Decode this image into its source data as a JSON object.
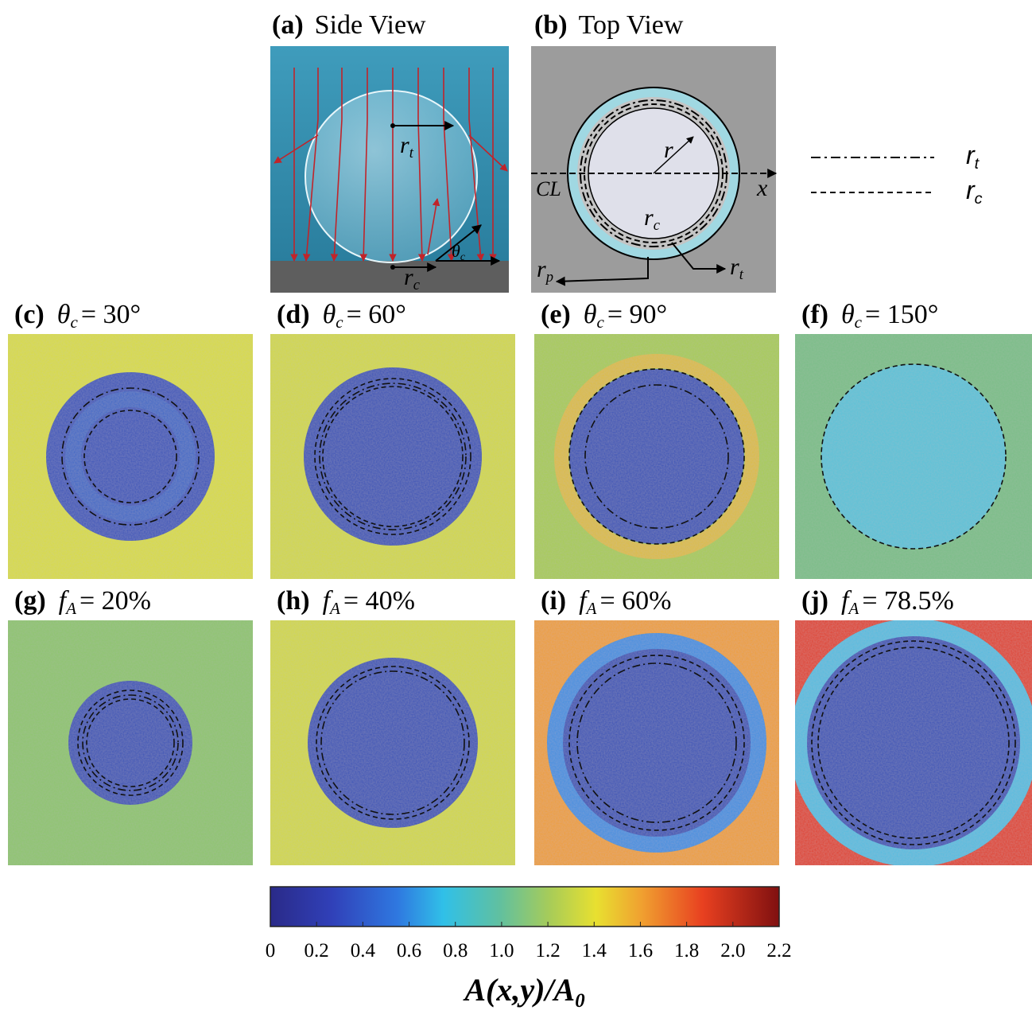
{
  "side_view": {
    "tag": "(a)",
    "title": "Side View",
    "r_t": [
      "r",
      "t"
    ],
    "r_c": [
      "r",
      "c"
    ],
    "theta_c": [
      "θ",
      "c"
    ]
  },
  "top_view": {
    "tag": "(b)",
    "title": "Top View",
    "r": "r",
    "cl": "CL",
    "x": "x",
    "r_c": [
      "r",
      "c"
    ],
    "r_p": [
      "r",
      "p"
    ],
    "r_t": [
      "r",
      "t"
    ]
  },
  "legend": [
    {
      "symbol": "r",
      "sub": "t",
      "style": "dash-dot"
    },
    {
      "symbol": "r",
      "sub": "c",
      "style": "dash"
    }
  ],
  "maps": [
    {
      "tag": "(c)",
      "symbol": "θ",
      "sub": "c",
      "text": "= 30°"
    },
    {
      "tag": "(d)",
      "symbol": "θ",
      "sub": "c",
      "text": "= 60°"
    },
    {
      "tag": "(e)",
      "symbol": "θ",
      "sub": "c",
      "text": "= 90°"
    },
    {
      "tag": "(f)",
      "symbol": "θ",
      "sub": "c",
      "text": "= 150°"
    },
    {
      "tag": "(g)",
      "symbol": "f",
      "sub": "A",
      "text": "= 20%"
    },
    {
      "tag": "(h)",
      "symbol": "f",
      "sub": "A",
      "text": "= 40%"
    },
    {
      "tag": "(i)",
      "symbol": "f",
      "sub": "A",
      "text": "= 60%"
    },
    {
      "tag": "(j)",
      "symbol": "f",
      "sub": "A",
      "text": "= 78.5%"
    }
  ],
  "colorbar": {
    "lim": [
      0,
      2.2
    ],
    "ticks": [
      0,
      0.2,
      0.4,
      0.6,
      0.8,
      {
        "value": 1,
        "label": "1.0"
      },
      1.2,
      1.4,
      1.6,
      1.8,
      {
        "value": 2,
        "label": "2.0"
      },
      2.2
    ],
    "label": "A(x,y)/A",
    "label_sub": "0"
  }
}
